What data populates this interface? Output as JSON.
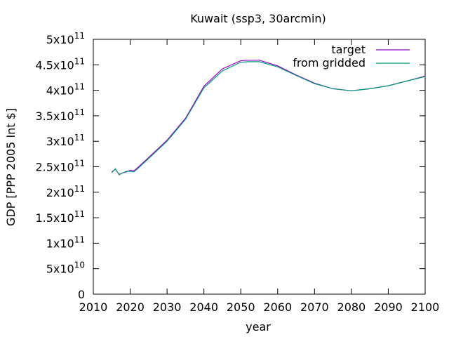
{
  "chart_data": {
    "type": "line",
    "title": "Kuwait (ssp3, 30arcmin)",
    "xlabel": "year",
    "ylabel": "GDP [PPP 2005 Int $]",
    "xlim": [
      2010,
      2100
    ],
    "ylim": [
      0,
      500000000000
    ],
    "x_ticks": [
      {
        "value": 2010,
        "label": "2010"
      },
      {
        "value": 2020,
        "label": "2020"
      },
      {
        "value": 2030,
        "label": "2030"
      },
      {
        "value": 2040,
        "label": "2040"
      },
      {
        "value": 2050,
        "label": "2050"
      },
      {
        "value": 2060,
        "label": "2060"
      },
      {
        "value": 2070,
        "label": "2070"
      },
      {
        "value": 2080,
        "label": "2080"
      },
      {
        "value": 2090,
        "label": "2090"
      },
      {
        "value": 2100,
        "label": "2100"
      }
    ],
    "y_ticks": [
      {
        "value": 0,
        "mant": "0",
        "exp": ""
      },
      {
        "value": 50000000000,
        "mant": "5x10",
        "exp": "10"
      },
      {
        "value": 100000000000,
        "mant": "1x10",
        "exp": "11"
      },
      {
        "value": 150000000000,
        "mant": "1.5x10",
        "exp": "11"
      },
      {
        "value": 200000000000,
        "mant": "2x10",
        "exp": "11"
      },
      {
        "value": 250000000000,
        "mant": "2.5x10",
        "exp": "11"
      },
      {
        "value": 300000000000,
        "mant": "3x10",
        "exp": "11"
      },
      {
        "value": 350000000000,
        "mant": "3.5x10",
        "exp": "11"
      },
      {
        "value": 400000000000,
        "mant": "4x10",
        "exp": "11"
      },
      {
        "value": 450000000000,
        "mant": "4.5x10",
        "exp": "11"
      },
      {
        "value": 500000000000,
        "mant": "5x10",
        "exp": "11"
      }
    ],
    "grid": false,
    "legend": "top-right",
    "series": [
      {
        "name": "target",
        "color": "#9400d3",
        "x": [
          2015,
          2016,
          2017,
          2018,
          2019,
          2020,
          2021,
          2022,
          2025,
          2030,
          2035,
          2040,
          2045,
          2050,
          2052,
          2055,
          2060,
          2065,
          2070,
          2075,
          2080,
          2085,
          2090,
          2095,
          2100
        ],
        "y": [
          240000000000,
          245000000000,
          235000000000,
          238000000000,
          240000000000,
          243000000000,
          242000000000,
          248000000000,
          268000000000,
          302000000000,
          345000000000,
          408000000000,
          442000000000,
          458000000000,
          459000000000,
          459000000000,
          448000000000,
          430000000000,
          414000000000,
          403000000000,
          399000000000,
          403000000000,
          409000000000,
          418000000000,
          428000000000
        ]
      },
      {
        "name": "from gridded",
        "color": "#009e73",
        "x": [
          2015,
          2016,
          2017,
          2018,
          2019,
          2020,
          2021,
          2022,
          2025,
          2030,
          2035,
          2040,
          2045,
          2050,
          2052,
          2055,
          2060,
          2065,
          2070,
          2075,
          2080,
          2085,
          2090,
          2095,
          2100
        ],
        "y": [
          238000000000,
          246000000000,
          234000000000,
          238000000000,
          241000000000,
          241000000000,
          240000000000,
          246000000000,
          266000000000,
          300000000000,
          343000000000,
          405000000000,
          438000000000,
          455000000000,
          456000000000,
          456000000000,
          446000000000,
          429000000000,
          413000000000,
          403000000000,
          399000000000,
          403000000000,
          409000000000,
          418000000000,
          427000000000
        ]
      }
    ]
  }
}
